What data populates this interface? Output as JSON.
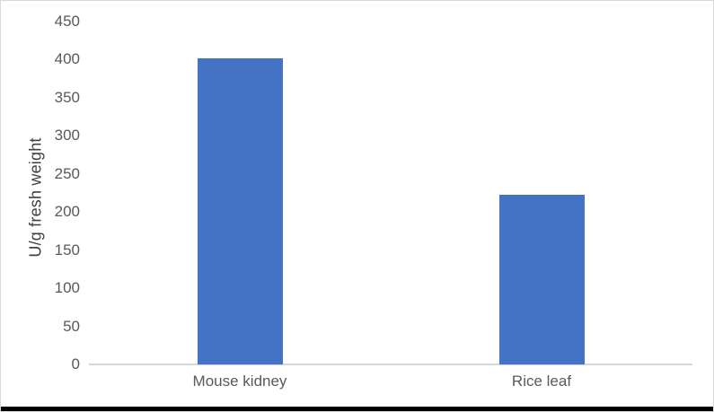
{
  "chart_data": {
    "type": "bar",
    "title": "",
    "categories": [
      "Mouse kidney",
      "Rice leaf"
    ],
    "values": [
      402,
      223
    ],
    "xlabel": "",
    "ylabel": "U/g fresh weight",
    "ylim": [
      0,
      450
    ],
    "yticks": [
      0,
      50,
      100,
      150,
      200,
      250,
      300,
      350,
      400,
      450
    ],
    "grid": false,
    "legend": false,
    "bar_color": "#4472c4",
    "axis_line_color": "#d6d6d6",
    "tick_label_color": "#595959",
    "axis_title_color": "#404040",
    "frame_border_color": "#d9d9d9",
    "bottom_edge_color": "#000000"
  }
}
